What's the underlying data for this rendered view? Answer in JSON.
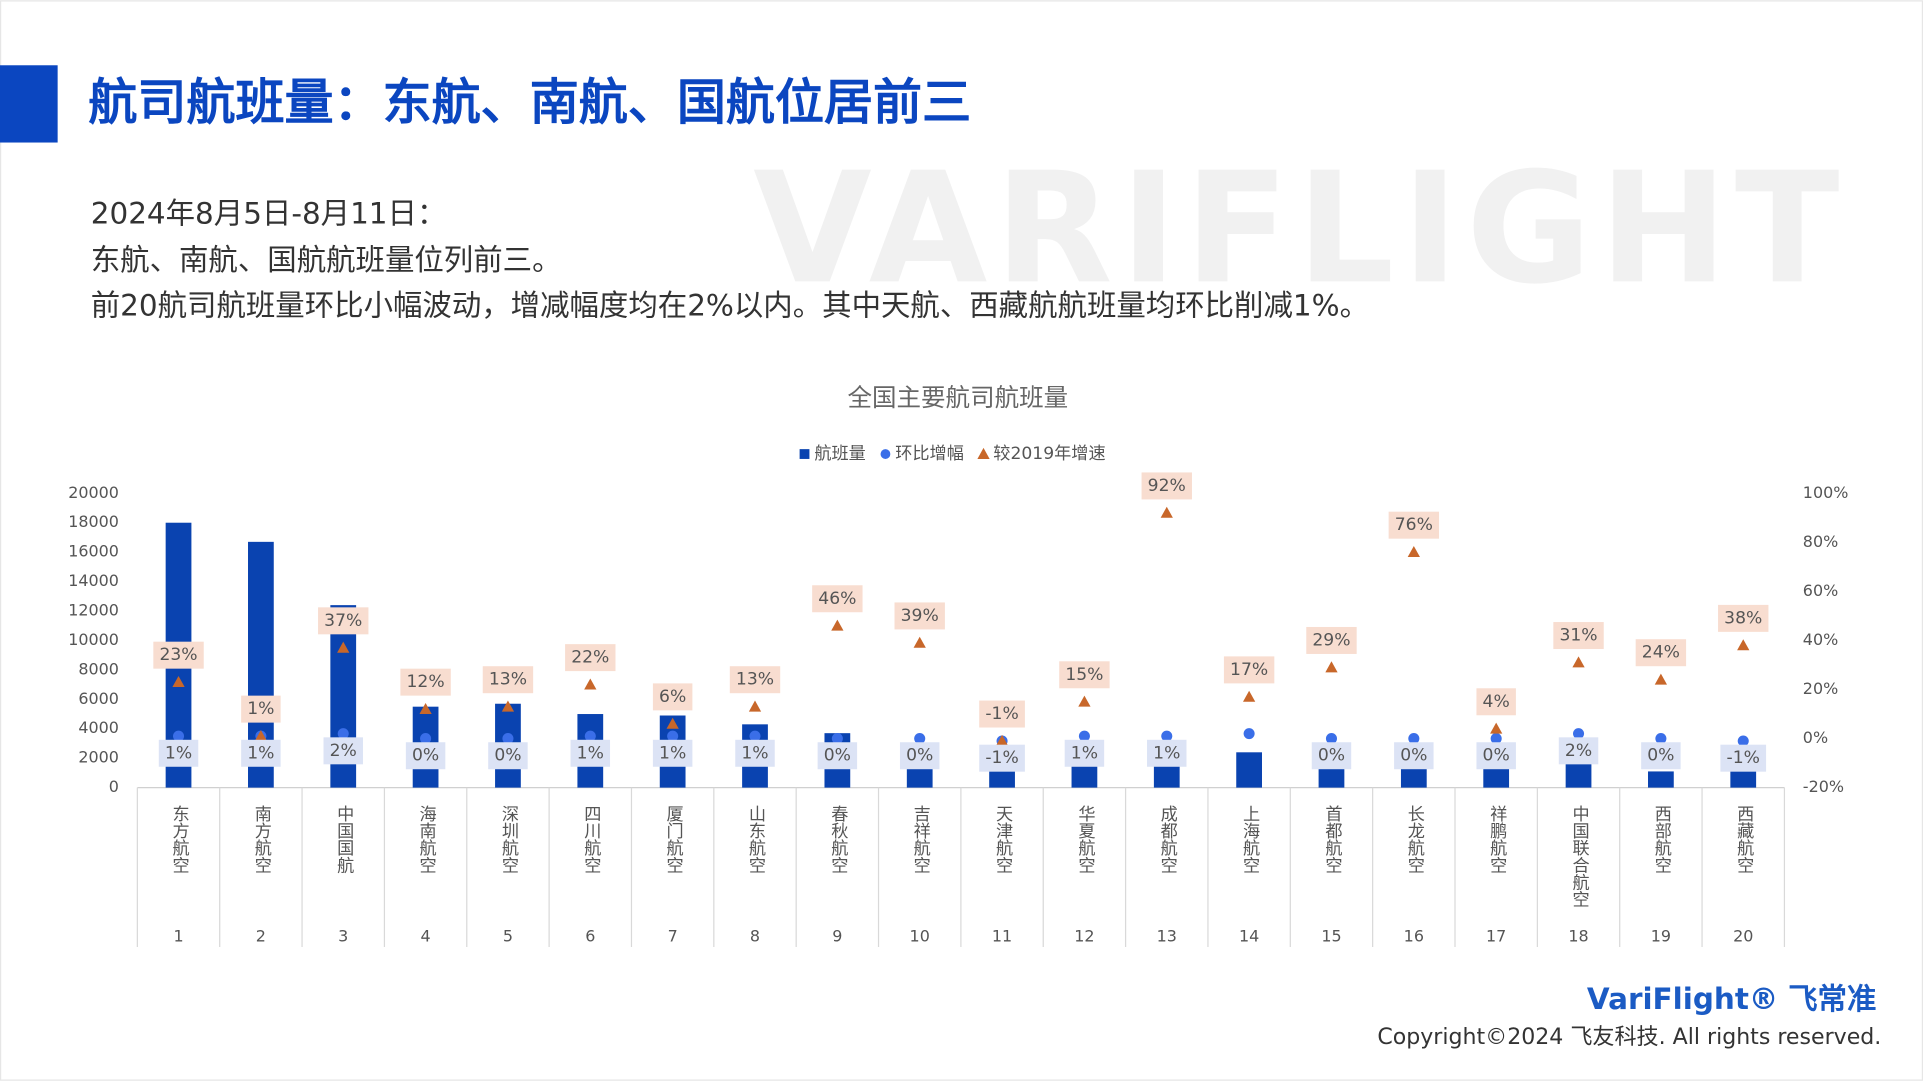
{
  "header": {
    "title": "航司航班量：东航、南航、国航位居前三"
  },
  "intro": [
    "2024年8月5日-8月11日：",
    "东航、南航、国航航班量位列前三。",
    "前20航司航班量环比小幅波动，增减幅度均在2%以内。其中天航、西藏航航班量均环比削减1%。"
  ],
  "watermark": "VARIFLIGHT",
  "footer": {
    "logo_en": "VariFlight®",
    "logo_cn": "飞常准",
    "copyright": "Copyright©2024 飞友科技. All rights reserved."
  },
  "chart_data": {
    "type": "combo",
    "title": "全国主要航司航班量",
    "categories": [
      "东方航空",
      "南方航空",
      "中国国航",
      "海南航空",
      "深圳航空",
      "四川航空",
      "厦门航空",
      "山东航空",
      "春秋航空",
      "吉祥航空",
      "天津航空",
      "华夏航空",
      "成都航空",
      "上海航空",
      "首都航空",
      "长龙航空",
      "祥鹏航空",
      "中国联合航空",
      "西部航空",
      "西藏航空"
    ],
    "ranks": [
      1,
      2,
      3,
      4,
      5,
      6,
      7,
      8,
      9,
      10,
      11,
      12,
      13,
      14,
      15,
      16,
      17,
      18,
      19,
      20
    ],
    "series": [
      {
        "name": "航班量",
        "type": "bar",
        "color": "#0a43b0",
        "values": [
          18000,
          16700,
          12400,
          5500,
          5700,
          5000,
          4900,
          4300,
          3700,
          2400,
          2000,
          2500,
          1500,
          2400,
          2000,
          2200,
          1700,
          1600,
          1100,
          1200
        ]
      },
      {
        "name": "环比增幅",
        "type": "scatter",
        "marker": "circle",
        "axis": "y2",
        "color": "#3a6ee8",
        "label_bg": "#dce3f5",
        "values": [
          1,
          1,
          2,
          0,
          0,
          1,
          1,
          1,
          0,
          0,
          -1,
          1,
          1,
          2,
          0,
          0,
          0,
          2,
          0,
          -1
        ],
        "value_labels": [
          "1%",
          "1%",
          "2%",
          "0%",
          "0%",
          "1%",
          "1%",
          "1%",
          "0%",
          "0%",
          "-1%",
          "1%",
          "1%",
          null,
          "0%",
          "0%",
          "0%",
          "2%",
          "0%",
          "-1%"
        ]
      },
      {
        "name": "较2019年增速",
        "type": "scatter",
        "marker": "triangle",
        "axis": "y2",
        "color": "#c8672a",
        "label_bg": "#f8ddd0",
        "values": [
          23,
          1,
          37,
          12,
          13,
          22,
          6,
          13,
          46,
          39,
          -1,
          15,
          92,
          17,
          29,
          76,
          4,
          31,
          24,
          38
        ],
        "value_labels": [
          "23%",
          "1%",
          "37%",
          "12%",
          "13%",
          "22%",
          "6%",
          "13%",
          "46%",
          "39%",
          "-1%",
          "15%",
          "92%",
          "17%",
          "29%",
          "76%",
          "4%",
          "31%",
          "24%",
          "38%"
        ]
      }
    ],
    "ylim": [
      0,
      20000
    ],
    "yticks": [
      0,
      2000,
      4000,
      6000,
      8000,
      10000,
      12000,
      14000,
      16000,
      18000,
      20000
    ],
    "y2lim": [
      -20,
      100
    ],
    "y2ticks": [
      {
        "value": -20,
        "label": "-20%"
      },
      {
        "value": 0,
        "label": "0%"
      },
      {
        "value": 20,
        "label": "20%"
      },
      {
        "value": 40,
        "label": "40%"
      },
      {
        "value": 60,
        "label": "60%"
      },
      {
        "value": 80,
        "label": "80%"
      },
      {
        "value": 100,
        "label": "100%"
      }
    ],
    "legend": "top"
  }
}
